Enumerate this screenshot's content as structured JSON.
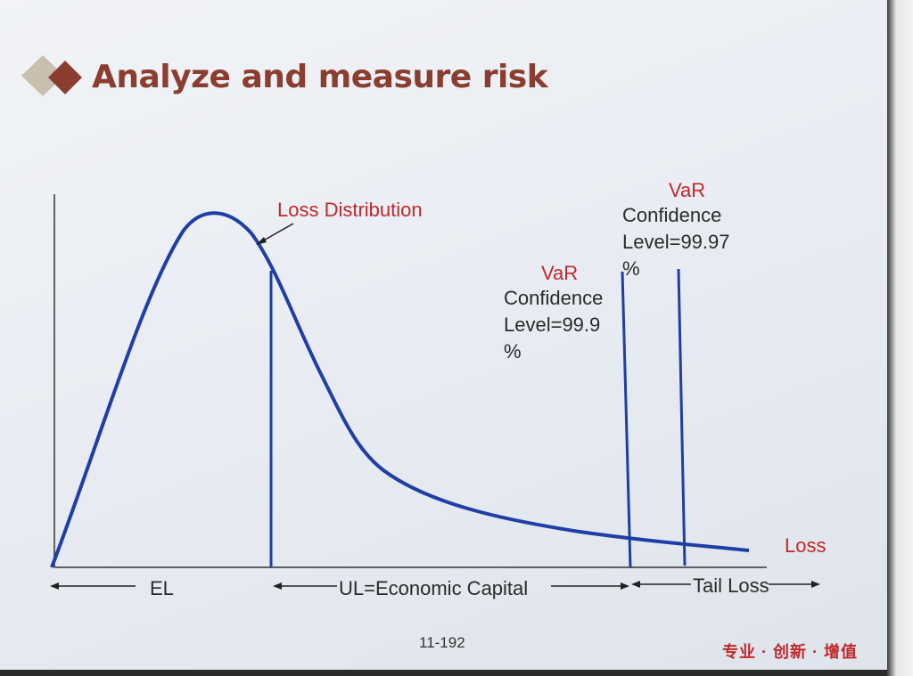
{
  "title": "Analyze and measure risk",
  "labels": {
    "loss_distribution": "Loss Distribution",
    "var1_title": "VaR",
    "var1_text": "Confidence\nLevel=99.9\n%",
    "var2_title": "VaR",
    "var2_text": "Confidence\nLevel=99.97\n%",
    "loss_axis": "Loss",
    "el": "EL",
    "ul": "UL=Economic Capital",
    "tail": "Tail Loss"
  },
  "footer": {
    "page_number": "11-192",
    "brand": "专业 · 创新 · 增值"
  },
  "colors": {
    "title": "#8b3e2f",
    "accent_red": "#c0282b",
    "curve_blue": "#1f3ea6",
    "diamond_light": "#c9bfae",
    "diamond_dark": "#8b3e2f"
  }
}
